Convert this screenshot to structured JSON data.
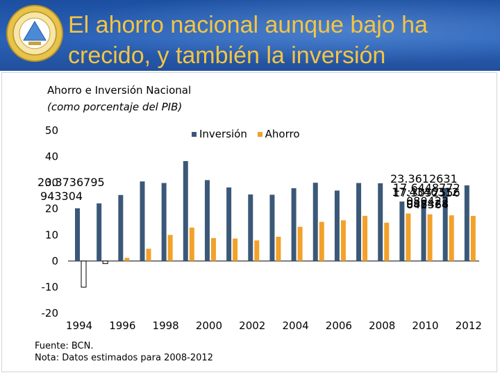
{
  "slide": {
    "title_line1": "El ahorro nacional aunque bajo ha",
    "title_line2": "crecido, y también la inversión"
  },
  "chart_data": {
    "type": "bar",
    "title": "Ahorro e Inversión Nacional",
    "subtitle": "(como porcentaje del PIB)",
    "categories": [
      1994,
      1995,
      1996,
      1997,
      1998,
      1999,
      2000,
      2001,
      2002,
      2003,
      2004,
      2005,
      2006,
      2007,
      2008,
      2009,
      2010,
      2011,
      2012
    ],
    "x_tick_labels": [
      "1994",
      "1996",
      "1998",
      "2000",
      "2002",
      "2004",
      "2006",
      "2008",
      "2010",
      "2012"
    ],
    "series": [
      {
        "name": "Inversión",
        "color": "#3b5878",
        "values": [
          20.2,
          22.1,
          25.3,
          30.5,
          29.9,
          38.3,
          31.0,
          28.2,
          25.5,
          25.4,
          27.9,
          30.0,
          27.0,
          29.9,
          29.8,
          22.8,
          23.36,
          28.0,
          29.0
        ]
      },
      {
        "name": "Ahorro",
        "color": "#f2a12a",
        "values": [
          -10.0,
          -1.0,
          1.2,
          4.7,
          10.0,
          12.8,
          8.8,
          8.6,
          7.9,
          9.3,
          13.1,
          15.0,
          15.6,
          17.3,
          14.7,
          18.2,
          17.9,
          17.5,
          17.3
        ]
      }
    ],
    "y_ticks": [
      50,
      40,
      30,
      20,
      10,
      0,
      -10,
      -20
    ],
    "ylim": [
      -20,
      50
    ],
    "grid": false,
    "legend_position": "top",
    "annotations": [
      {
        "text_line1": "20.3736795",
        "text_line2": "943304"
      },
      {
        "text_line1": "23.3612631"
      },
      {
        "text_line1": "17.6448772"
      },
      {
        "text_line1": "17.4346312"
      },
      {
        "text_line1": "17.3052556"
      },
      {
        "text_line1": "080422"
      },
      {
        "text_line1": "088428"
      },
      {
        "text_line1": "842364"
      }
    ]
  },
  "footer": {
    "source": "Fuente: BCN.",
    "note": "Nota: Datos estimados para 2008-2012"
  }
}
